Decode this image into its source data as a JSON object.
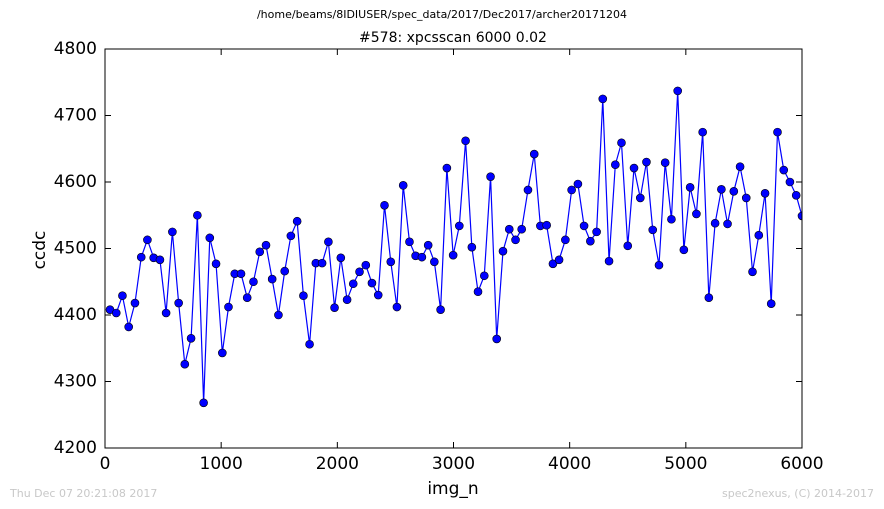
{
  "chart_data": {
    "type": "line",
    "suptitle": "/home/beams/8IDIUSER/spec_data/2017/Dec2017/archer20171204",
    "title": "#578: xpcsscan 6000 0.02",
    "xlabel": "img_n",
    "ylabel": "ccdc",
    "footer_left": "Thu Dec 07 20:21:08 2017",
    "footer_right": "spec2nexus, (C) 2014-2017",
    "color": "#0000ff",
    "xlim": [
      0,
      6000
    ],
    "xticks": [
      0,
      1000,
      2000,
      3000,
      4000,
      5000,
      6000
    ],
    "ylim": [
      4200,
      4800
    ],
    "yticks": [
      4200,
      4300,
      4400,
      4500,
      4600,
      4700,
      4800
    ],
    "x": [
      43,
      97,
      150,
      204,
      258,
      312,
      365,
      419,
      473,
      526,
      580,
      634,
      687,
      741,
      795,
      849,
      902,
      956,
      1010,
      1063,
      1117,
      1171,
      1224,
      1278,
      1332,
      1386,
      1439,
      1493,
      1547,
      1600,
      1654,
      1708,
      1761,
      1815,
      1869,
      1923,
      1976,
      2030,
      2084,
      2137,
      2191,
      2245,
      2298,
      2352,
      2406,
      2460,
      2513,
      2567,
      2621,
      2674,
      2728,
      2782,
      2835,
      2889,
      2943,
      2997,
      3050,
      3104,
      3158,
      3211,
      3265,
      3319,
      3372,
      3426,
      3480,
      3534,
      3587,
      3641,
      3695,
      3748,
      3802,
      3856,
      3909,
      3963,
      4017,
      4071,
      4124,
      4178,
      4232,
      4285,
      4339,
      4393,
      4446,
      4500,
      4554,
      4608,
      4661,
      4715,
      4769,
      4822,
      4876,
      4930,
      4983,
      5037,
      5091,
      5145,
      5198,
      5252,
      5306,
      5359,
      5413,
      5467,
      5520,
      5574,
      5628,
      5682,
      5735,
      5789,
      5843,
      5896,
      5950,
      6000
    ],
    "values": [
      4408,
      4403,
      4429,
      4382,
      4418,
      4487,
      4513,
      4486,
      4483,
      4403,
      4525,
      4418,
      4326,
      4365,
      4550,
      4268,
      4516,
      4477,
      4343,
      4412,
      4462,
      4462,
      4426,
      4450,
      4495,
      4505,
      4454,
      4400,
      4466,
      4519,
      4541,
      4429,
      4356,
      4478,
      4478,
      4510,
      4411,
      4486,
      4423,
      4447,
      4465,
      4475,
      4448,
      4430,
      4565,
      4480,
      4412,
      4595,
      4510,
      4489,
      4487,
      4505,
      4480,
      4408,
      4621,
      4490,
      4534,
      4662,
      4502,
      4435,
      4459,
      4608,
      4364,
      4496,
      4529,
      4513,
      4529,
      4588,
      4642,
      4534,
      4535,
      4477,
      4483,
      4513,
      4588,
      4597,
      4534,
      4511,
      4525,
      4725,
      4481,
      4626,
      4659,
      4504,
      4621,
      4576,
      4630,
      4528,
      4475,
      4629,
      4544,
      4737,
      4498,
      4592,
      4552,
      4675,
      4426,
      4538,
      4589,
      4537,
      4586,
      4623,
      4576,
      4465,
      4520,
      4583,
      4417,
      4675,
      4618,
      4600,
      4580,
      4549
    ]
  }
}
